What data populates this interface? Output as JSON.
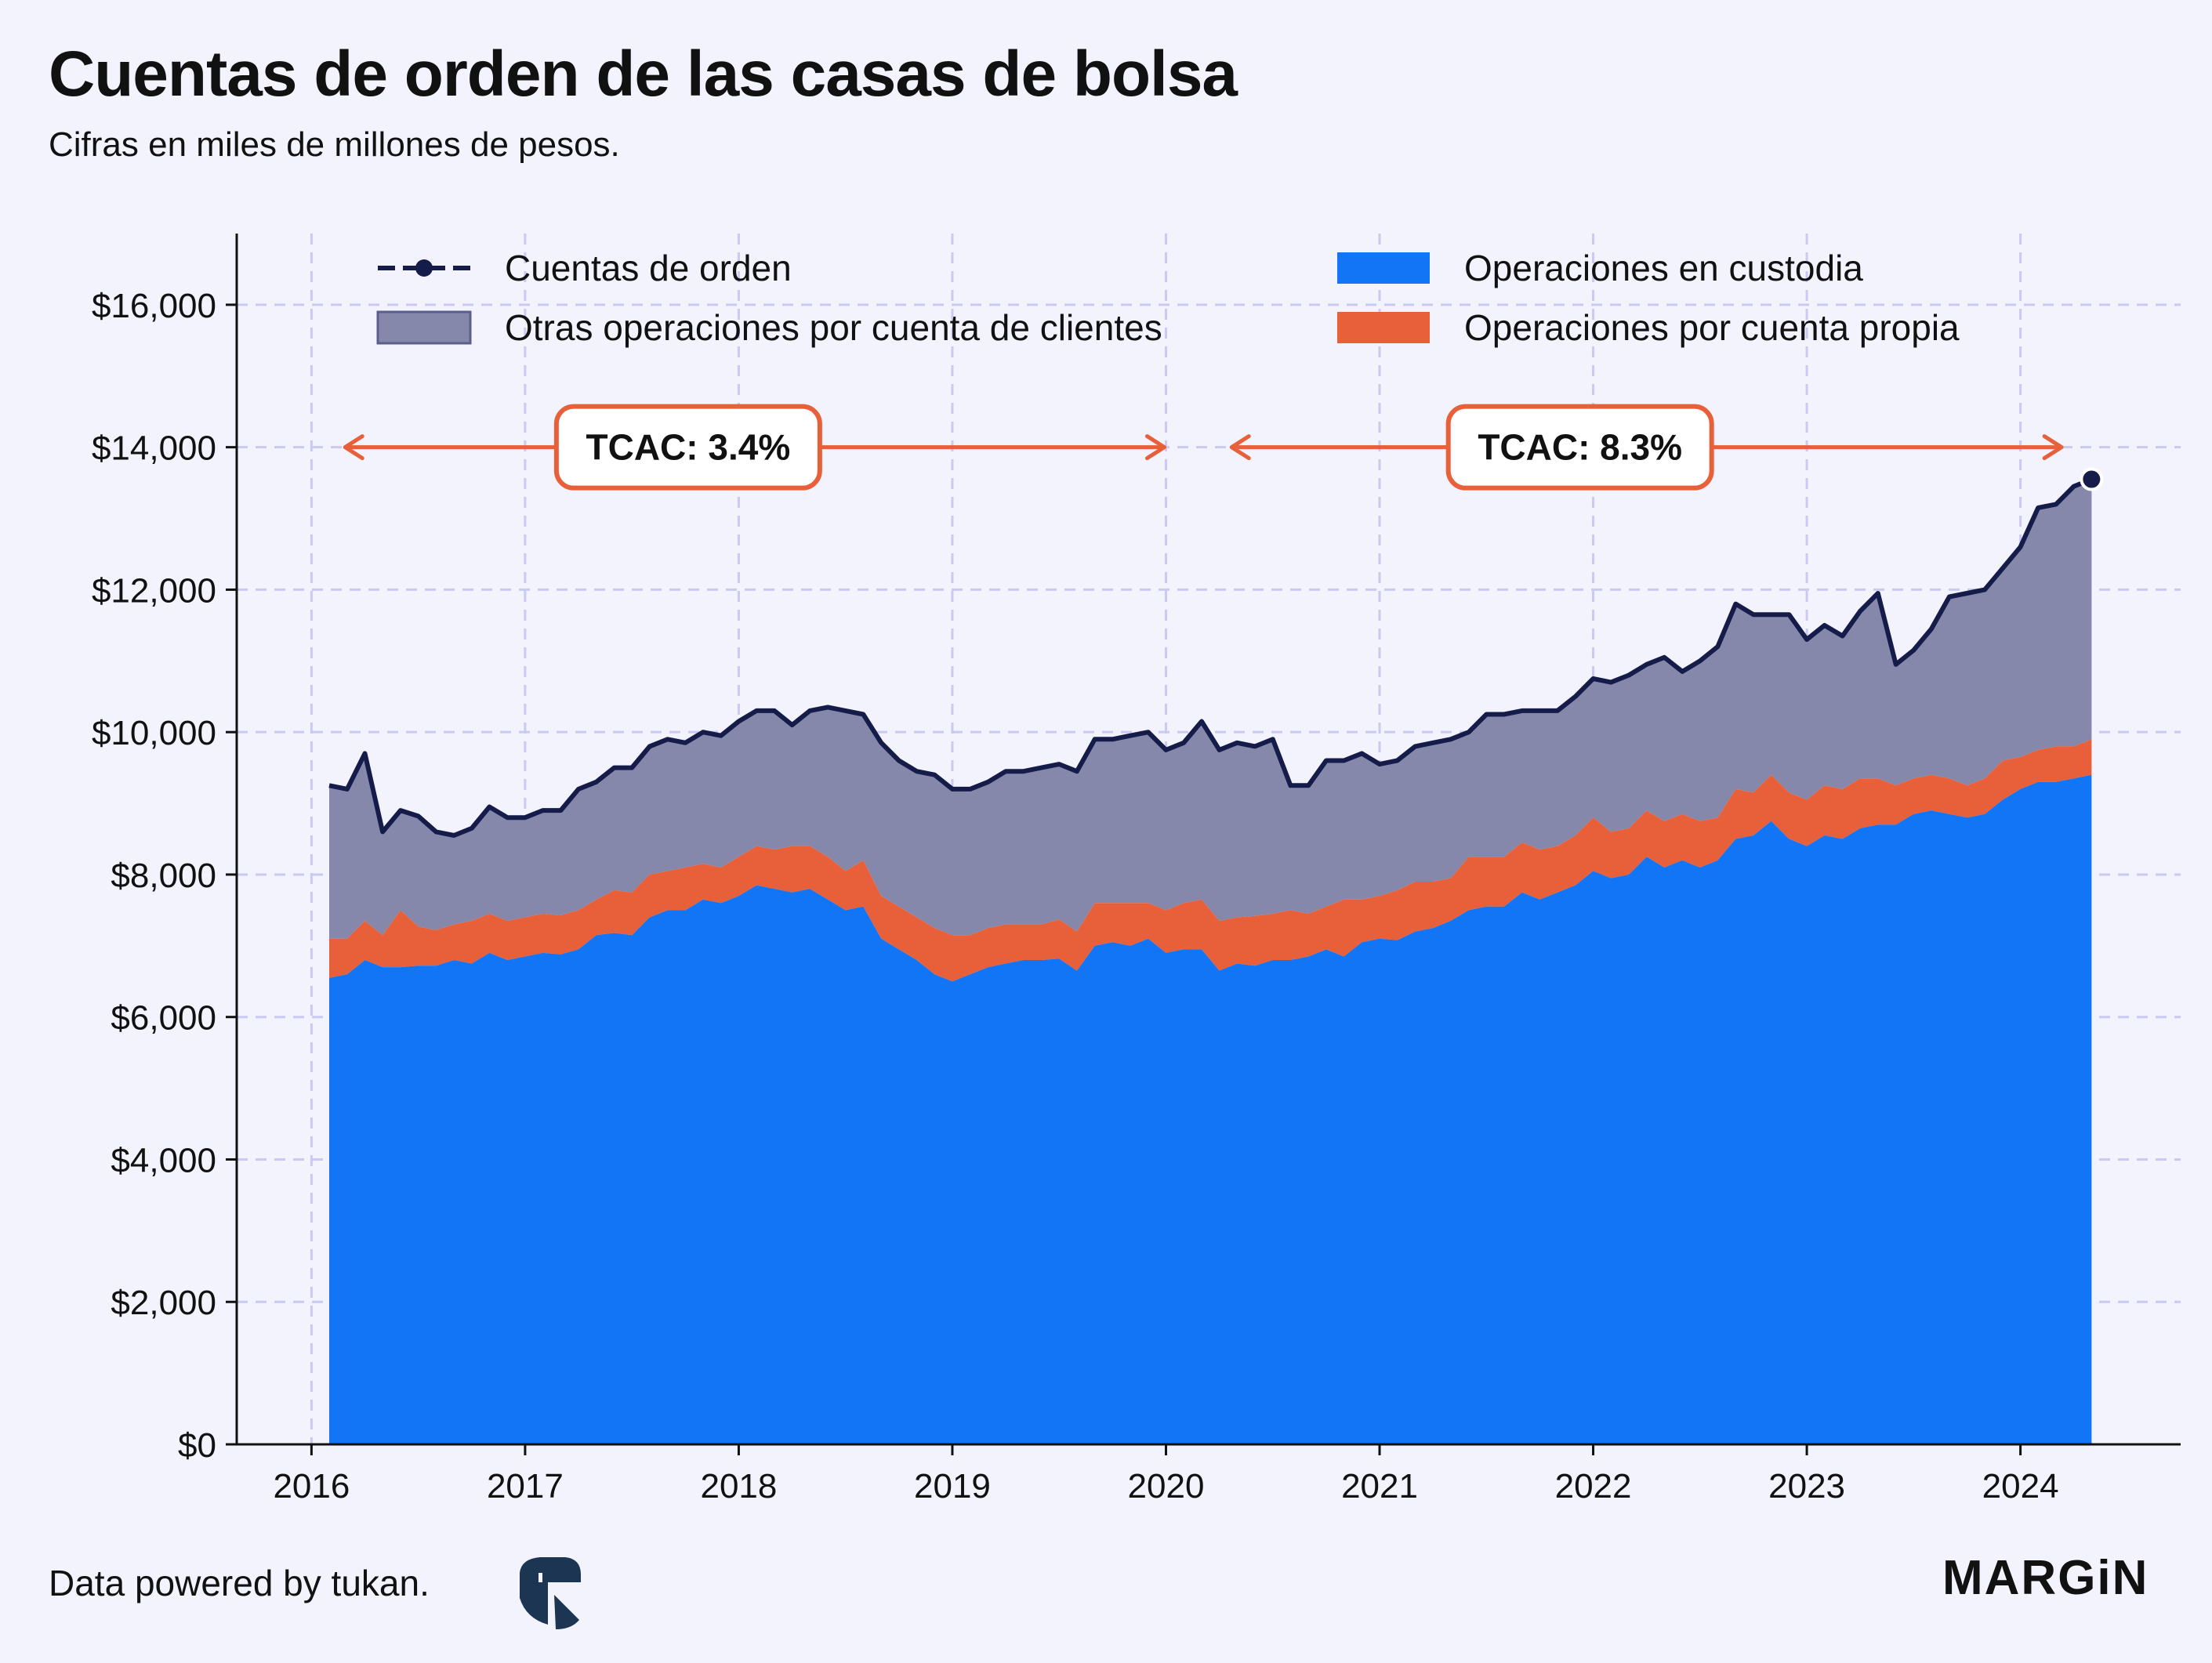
{
  "title": "Cuentas de orden de las casas de bolsa",
  "subtitle": "Cifras en miles de millones de pesos.",
  "footer": {
    "source": "Data powered by tukan.",
    "source_icon": "tukan-logo",
    "brand": "MARGiN"
  },
  "colors": {
    "background": "#f3f3fe",
    "total_line": "#161c4a",
    "otras": "#8588ab",
    "custodia": "#1275f6",
    "propia": "#e8603a",
    "annotation": "#e8603a",
    "grid": "#c9c9f2"
  },
  "annotations": [
    {
      "label": "TCAC: 3.4%",
      "from": 2016.15,
      "to": 2020.0
    },
    {
      "label": "TCAC: 8.3%",
      "from": 2020.3,
      "to": 2024.2
    }
  ],
  "chart_data": {
    "type": "area",
    "title": "Cuentas de orden de las casas de bolsa",
    "subtitle": "Cifras en miles de millones de pesos.",
    "xlabel": "",
    "ylabel": "",
    "xlim": [
      2015.65,
      2024.75
    ],
    "ylim": [
      0,
      17000
    ],
    "xticks": [
      2016,
      2017,
      2018,
      2019,
      2020,
      2021,
      2022,
      2023,
      2024
    ],
    "xtick_labels": [
      "2016",
      "2017",
      "2018",
      "2019",
      "2020",
      "2021",
      "2022",
      "2023",
      "2024"
    ],
    "yticks": [
      0,
      2000,
      4000,
      6000,
      8000,
      10000,
      12000,
      14000,
      16000
    ],
    "ytick_labels": [
      "$0",
      "$2,000",
      "$4,000",
      "$6,000",
      "$8,000",
      "$10,000",
      "$12,000",
      "$14,000",
      "$16,000"
    ],
    "grid": true,
    "legend_position": "top",
    "legend": [
      {
        "label": "Cuentas de orden",
        "kind": "line-marker"
      },
      {
        "label": "Operaciones en custodia",
        "kind": "area"
      },
      {
        "label": "Otras operaciones por cuenta de clientes",
        "kind": "area"
      },
      {
        "label": "Operaciones por cuenta propia",
        "kind": "area"
      }
    ],
    "x": [
      2016.083,
      2016.167,
      2016.25,
      2016.333,
      2016.417,
      2016.5,
      2016.583,
      2016.667,
      2016.75,
      2016.833,
      2016.917,
      2017.0,
      2017.083,
      2017.167,
      2017.25,
      2017.333,
      2017.417,
      2017.5,
      2017.583,
      2017.667,
      2017.75,
      2017.833,
      2017.917,
      2018.0,
      2018.083,
      2018.167,
      2018.25,
      2018.333,
      2018.417,
      2018.5,
      2018.583,
      2018.667,
      2018.75,
      2018.833,
      2018.917,
      2019.0,
      2019.083,
      2019.167,
      2019.25,
      2019.333,
      2019.417,
      2019.5,
      2019.583,
      2019.667,
      2019.75,
      2019.833,
      2019.917,
      2020.0,
      2020.083,
      2020.167,
      2020.25,
      2020.333,
      2020.417,
      2020.5,
      2020.583,
      2020.667,
      2020.75,
      2020.833,
      2020.917,
      2021.0,
      2021.083,
      2021.167,
      2021.25,
      2021.333,
      2021.417,
      2021.5,
      2021.583,
      2021.667,
      2021.75,
      2021.833,
      2021.917,
      2022.0,
      2022.083,
      2022.167,
      2022.25,
      2022.333,
      2022.417,
      2022.5,
      2022.583,
      2022.667,
      2022.75,
      2022.833,
      2022.917,
      2023.0,
      2023.083,
      2023.167,
      2023.25,
      2023.333,
      2023.417,
      2023.5,
      2023.583,
      2023.667,
      2023.75,
      2023.833,
      2023.917,
      2024.0,
      2024.083,
      2024.167,
      2024.25,
      2024.333
    ],
    "series": [
      {
        "name": "Operaciones en custodia",
        "stack": "base",
        "values": [
          6550,
          6600,
          6800,
          6700,
          6700,
          6720,
          6720,
          6800,
          6750,
          6900,
          6800,
          6850,
          6900,
          6880,
          6950,
          7150,
          7180,
          7150,
          7400,
          7500,
          7500,
          7650,
          7600,
          7700,
          7850,
          7800,
          7750,
          7800,
          7650,
          7500,
          7550,
          7100,
          6950,
          6800,
          6600,
          6500,
          6600,
          6700,
          6750,
          6800,
          6800,
          6820,
          6650,
          7000,
          7050,
          7000,
          7100,
          6900,
          6950,
          6950,
          6650,
          6750,
          6720,
          6800,
          6800,
          6850,
          6950,
          6850,
          7050,
          7100,
          7080,
          7200,
          7250,
          7350,
          7500,
          7550,
          7550,
          7750,
          7650,
          7750,
          7850,
          8050,
          7950,
          8000,
          8250,
          8100,
          8200,
          8100,
          8200,
          8500,
          8550,
          8750,
          8500,
          8400,
          8550,
          8500,
          8650,
          8700,
          8700,
          8850,
          8900,
          8850,
          8800,
          8850,
          9050,
          9200,
          9300,
          9300,
          9350,
          9400
        ]
      },
      {
        "name": "Operaciones por cuenta propia",
        "stack": "middle",
        "values": [
          550,
          500,
          550,
          450,
          800,
          550,
          500,
          500,
          600,
          550,
          550,
          550,
          550,
          550,
          550,
          500,
          600,
          600,
          600,
          550,
          600,
          500,
          500,
          550,
          550,
          550,
          650,
          600,
          600,
          550,
          650,
          600,
          600,
          600,
          650,
          650,
          550,
          550,
          550,
          500,
          500,
          550,
          550,
          600,
          550,
          600,
          500,
          600,
          650,
          700,
          700,
          650,
          700,
          650,
          700,
          600,
          600,
          800,
          600,
          600,
          700,
          700,
          650,
          600,
          750,
          700,
          700,
          700,
          700,
          650,
          700,
          750,
          650,
          650,
          650,
          650,
          650,
          650,
          600,
          700,
          600,
          650,
          650,
          650,
          700,
          700,
          700,
          650,
          550,
          500,
          500,
          500,
          450,
          500,
          550,
          450,
          450,
          500,
          450,
          500
        ]
      },
      {
        "name": "Otras operaciones por cuenta de clientes",
        "stack": "top",
        "values": [
          2150,
          2100,
          2350,
          1450,
          1400,
          1550,
          1380,
          1250,
          1300,
          1500,
          1450,
          1400,
          1450,
          1470,
          1700,
          1650,
          1720,
          1750,
          1800,
          1850,
          1750,
          1850,
          1850,
          1900,
          1900,
          1950,
          1700,
          1900,
          2100,
          2250,
          2050,
          2150,
          2050,
          2050,
          2150,
          2050,
          2050,
          2050,
          2150,
          2150,
          2200,
          2180,
          2250,
          2300,
          2300,
          2350,
          2400,
          2250,
          2250,
          2500,
          2400,
          2450,
          2380,
          2450,
          1750,
          1800,
          2050,
          1950,
          2050,
          1850,
          1820,
          1900,
          1950,
          1950,
          1750,
          2000,
          2000,
          1850,
          1950,
          1900,
          1950,
          1950,
          2100,
          2150,
          2050,
          2300,
          2000,
          2250,
          2400,
          2600,
          2500,
          2250,
          2500,
          2250,
          2250,
          2150,
          2350,
          2600,
          1700,
          1800,
          2050,
          2550,
          2700,
          2650,
          2700,
          2950,
          3400,
          3400,
          3650,
          3650
        ]
      },
      {
        "name": "Cuentas de orden",
        "kind": "line",
        "values": [
          9250,
          9200,
          9700,
          8600,
          8900,
          8820,
          8600,
          8550,
          8650,
          8950,
          8800,
          8800,
          8900,
          8900,
          9200,
          9300,
          9500,
          9500,
          9800,
          9900,
          9850,
          10000,
          9950,
          10150,
          10300,
          10300,
          10100,
          10300,
          10350,
          10300,
          10250,
          9850,
          9600,
          9450,
          9400,
          9200,
          9200,
          9300,
          9450,
          9450,
          9500,
          9550,
          9450,
          9900,
          9900,
          9950,
          10000,
          9750,
          9850,
          10150,
          9750,
          9850,
          9800,
          9900,
          9250,
          9250,
          9600,
          9600,
          9700,
          9550,
          9600,
          9800,
          9850,
          9900,
          10000,
          10250,
          10250,
          10300,
          10300,
          10300,
          10500,
          10750,
          10700,
          10800,
          10950,
          11050,
          10850,
          11000,
          11200,
          11800,
          11650,
          11650,
          11650,
          11300,
          11500,
          11350,
          11700,
          11950,
          10950,
          11150,
          11450,
          11900,
          11950,
          12000,
          12300,
          12600,
          13150,
          13200,
          13450,
          13550
        ]
      }
    ]
  }
}
